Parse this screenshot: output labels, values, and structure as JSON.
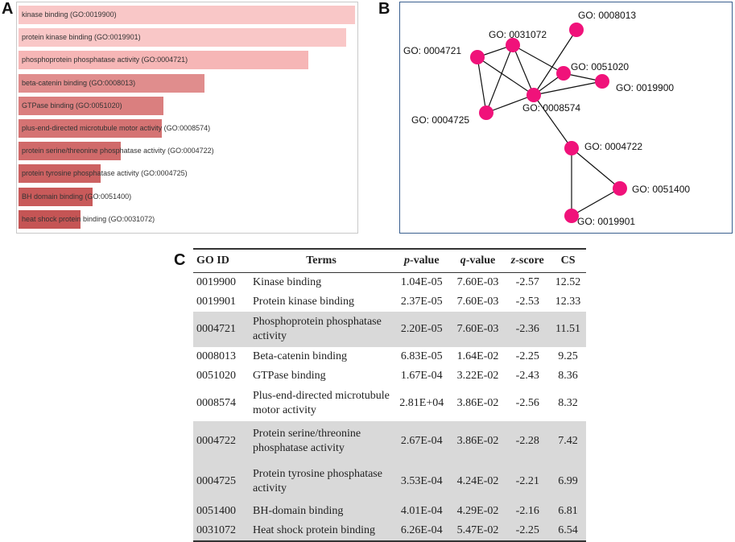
{
  "panels": {
    "a": "A",
    "b": "B",
    "c": "C"
  },
  "chart_data": {
    "type": "bar",
    "orientation": "horizontal",
    "categories": [
      "kinase binding (GO:0019900)",
      "protein kinase binding (GO:0019901)",
      "phosphoprotein phosphatase activity (GO:0004721)",
      "beta-catenin binding (GO:0008013)",
      "GTPase binding (GO:0051020)",
      "plus-end-directed microtubule motor activity (GO:0008574)",
      "protein serine/threonine phosphatase activity (GO:0004722)",
      "protein tyrosine phosphatase activity (GO:0004725)",
      "BH domain binding (GO:0051400)",
      "heat shock protein binding (GO:0031072)"
    ],
    "values": [
      12.52,
      12.33,
      11.51,
      9.25,
      8.36,
      8.32,
      7.42,
      6.99,
      6.81,
      6.54
    ],
    "colors": [
      "#f9c7c7",
      "#f9c7c7",
      "#f6b6b6",
      "#e08d8d",
      "#da7f7f",
      "#d57373",
      "#d06a6a",
      "#cc6262",
      "#c85a5a",
      "#c55555"
    ],
    "title": "",
    "xlabel": "",
    "ylabel": ""
  },
  "network": {
    "node_color": "#f0127a",
    "nodes": [
      {
        "id": "GO: 0008013"
      },
      {
        "id": "GO: 0031072"
      },
      {
        "id": "GO: 0004721"
      },
      {
        "id": "GO: 0051020"
      },
      {
        "id": "GO: 0019900"
      },
      {
        "id": "GO: 0008574"
      },
      {
        "id": "GO: 0004725"
      },
      {
        "id": "GO: 0004722"
      },
      {
        "id": "GO: 0051400"
      },
      {
        "id": "GO: 0019901"
      }
    ],
    "edges": [
      [
        "GO: 0004721",
        "GO: 0031072"
      ],
      [
        "GO: 0004721",
        "GO: 0008574"
      ],
      [
        "GO: 0004721",
        "GO: 0004725"
      ],
      [
        "GO: 0031072",
        "GO: 0008574"
      ],
      [
        "GO: 0031072",
        "GO: 0004725"
      ],
      [
        "GO: 0031072",
        "GO: 0051020"
      ],
      [
        "GO: 0008013",
        "GO: 0008574"
      ],
      [
        "GO: 0051020",
        "GO: 0019900"
      ],
      [
        "GO: 0008574",
        "GO: 0019900"
      ],
      [
        "GO: 0008574",
        "GO: 0051020"
      ],
      [
        "GO: 0008574",
        "GO: 0004725"
      ],
      [
        "GO: 0008574",
        "GO: 0004722"
      ],
      [
        "GO: 0004722",
        "GO: 0051400"
      ],
      [
        "GO: 0004722",
        "GO: 0019901"
      ],
      [
        "GO: 0051400",
        "GO: 0019901"
      ]
    ]
  },
  "table": {
    "headers": {
      "go_id": "GO ID",
      "terms": "Terms",
      "p": "p",
      "p_suffix": "-value",
      "q": "q",
      "q_suffix": "-value",
      "z": "z",
      "z_suffix": "-score",
      "cs": "CS"
    },
    "rows": [
      {
        "id": "0019900",
        "term": "Kinase binding",
        "p": "1.04E-05",
        "q": "7.60E-03",
        "z": "-2.57",
        "cs": "12.52"
      },
      {
        "id": "0019901",
        "term": "Protein kinase binding",
        "p": "2.37E-05",
        "q": "7.60E-03",
        "z": "-2.53",
        "cs": "12.33"
      },
      {
        "id": "0004721",
        "term": "Phosphoprotein phosphatase activity",
        "p": "2.20E-05",
        "q": "7.60E-03",
        "z": "-2.36",
        "cs": "11.51"
      },
      {
        "id": "0008013",
        "term": "Beta-catenin binding",
        "p": "6.83E-05",
        "q": "1.64E-02",
        "z": "-2.25",
        "cs": "9.25"
      },
      {
        "id": "0051020",
        "term": "GTPase binding",
        "p": "1.67E-04",
        "q": "3.22E-02",
        "z": "-2.43",
        "cs": "8.36"
      },
      {
        "id": "0008574",
        "term": "Plus-end-directed microtubule motor activity",
        "p": "2.81E+04",
        "q": "3.86E-02",
        "z": "-2.56",
        "cs": "8.32"
      },
      {
        "id": "0004722",
        "term": "Protein serine/threonine phosphatase activity",
        "p": "2.67E-04",
        "q": "3.86E-02",
        "z": "-2.28",
        "cs": "7.42"
      },
      {
        "id": "0004725",
        "term": "Protein tyrosine phosphatase activity",
        "p": "3.53E-04",
        "q": "4.24E-02",
        "z": "-2.21",
        "cs": "6.99"
      },
      {
        "id": "0051400",
        "term": "BH-domain binding",
        "p": "4.01E-04",
        "q": "4.29E-02",
        "z": "-2.16",
        "cs": "6.81"
      },
      {
        "id": "0031072",
        "term": "Heat shock protein binding",
        "p": "6.26E-04",
        "q": "5.47E-02",
        "z": "-2.25",
        "cs": "6.54"
      }
    ]
  }
}
